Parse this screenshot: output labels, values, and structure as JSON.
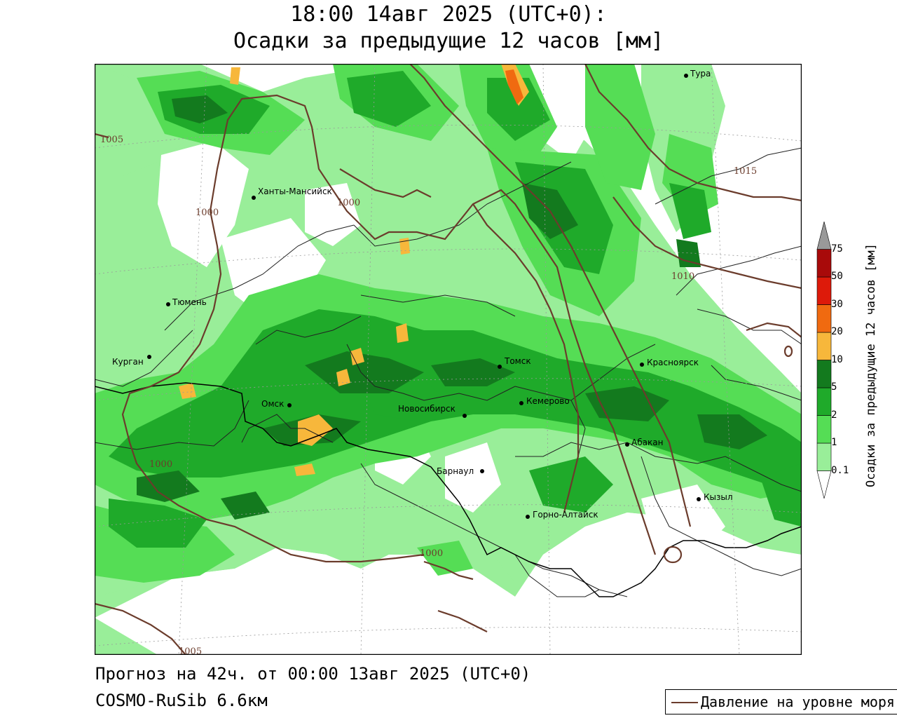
{
  "title": {
    "line1": "18:00 14авг 2025 (UTC+0):",
    "line2": "Осадки за предыдущие 12 часов [мм]"
  },
  "footer": {
    "forecast": "Прогноз на 42ч. от 00:00 13авг 2025 (UTC+0)",
    "model": "COSMO-RuSib 6.6км"
  },
  "legend": {
    "pressure_label": "Давление на уровне моря",
    "pressure_color": "#6b3c2c"
  },
  "colorbar": {
    "title": "Осадки за предыдущие 12 часов [мм]",
    "levels": [
      "0.1",
      "1",
      "2",
      "5",
      "10",
      "20",
      "30",
      "50",
      "75"
    ],
    "colors": [
      "#ffffff",
      "#99ee99",
      "#55dd55",
      "#1faa2a",
      "#137a1e",
      "#f7b73b",
      "#f06a10",
      "#dd1a0a",
      "#a80a0a",
      "#999999"
    ]
  },
  "cities": [
    {
      "name": "Тура"
    },
    {
      "name": "Ханты-Мансийск"
    },
    {
      "name": "Тюмень"
    },
    {
      "name": "Курган"
    },
    {
      "name": "Омск"
    },
    {
      "name": "Новосибирск"
    },
    {
      "name": "Томск"
    },
    {
      "name": "Кемерово"
    },
    {
      "name": "Красноярск"
    },
    {
      "name": "Абакан"
    },
    {
      "name": "Барнаул"
    },
    {
      "name": "Горно-Алтайск"
    },
    {
      "name": "Кызыл"
    }
  ],
  "isobars": [
    {
      "label": "1005"
    },
    {
      "label": "1000"
    },
    {
      "label": "1000"
    },
    {
      "label": "1015"
    },
    {
      "label": "1010"
    },
    {
      "label": "1000"
    },
    {
      "label": "1000"
    },
    {
      "label": "1005"
    }
  ]
}
